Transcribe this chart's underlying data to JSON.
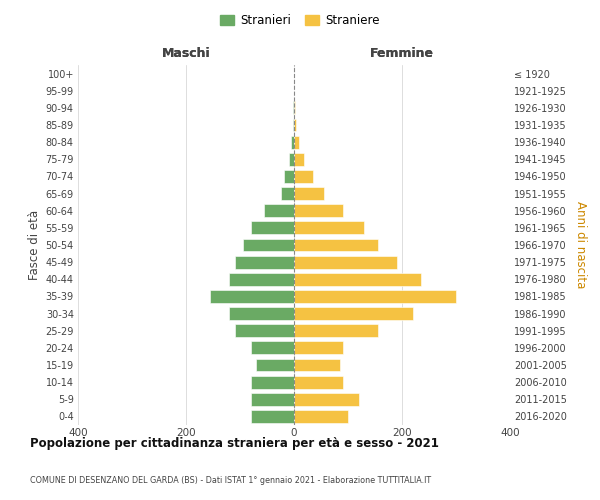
{
  "age_groups": [
    "0-4",
    "5-9",
    "10-14",
    "15-19",
    "20-24",
    "25-29",
    "30-34",
    "35-39",
    "40-44",
    "45-49",
    "50-54",
    "55-59",
    "60-64",
    "65-69",
    "70-74",
    "75-79",
    "80-84",
    "85-89",
    "90-94",
    "95-99",
    "100+"
  ],
  "birth_years": [
    "2016-2020",
    "2011-2015",
    "2006-2010",
    "2001-2005",
    "1996-2000",
    "1991-1995",
    "1986-1990",
    "1981-1985",
    "1976-1980",
    "1971-1975",
    "1966-1970",
    "1961-1965",
    "1956-1960",
    "1951-1955",
    "1946-1950",
    "1941-1945",
    "1936-1940",
    "1931-1935",
    "1926-1930",
    "1921-1925",
    "≤ 1920"
  ],
  "maschi": [
    80,
    80,
    80,
    70,
    80,
    110,
    120,
    155,
    120,
    110,
    95,
    80,
    55,
    25,
    18,
    10,
    5,
    2,
    1,
    0,
    0
  ],
  "femmine": [
    100,
    120,
    90,
    85,
    90,
    155,
    220,
    300,
    235,
    190,
    155,
    130,
    90,
    55,
    35,
    18,
    10,
    3,
    1,
    0,
    0
  ],
  "color_maschi": "#6aaa64",
  "color_femmine": "#f5c242",
  "title": "Popolazione per cittadinanza straniera per età e sesso - 2021",
  "subtitle": "COMUNE DI DESENZANO DEL GARDA (BS) - Dati ISTAT 1° gennaio 2021 - Elaborazione TUTTITALIA.IT",
  "xlabel_maschi": "Maschi",
  "xlabel_femmine": "Femmine",
  "ylabel_left": "Fasce di età",
  "ylabel_right": "Anni di nascita",
  "legend_maschi": "Stranieri",
  "legend_femmine": "Straniere",
  "xlim": 400,
  "background_color": "#ffffff",
  "grid_color": "#d0d0d0"
}
